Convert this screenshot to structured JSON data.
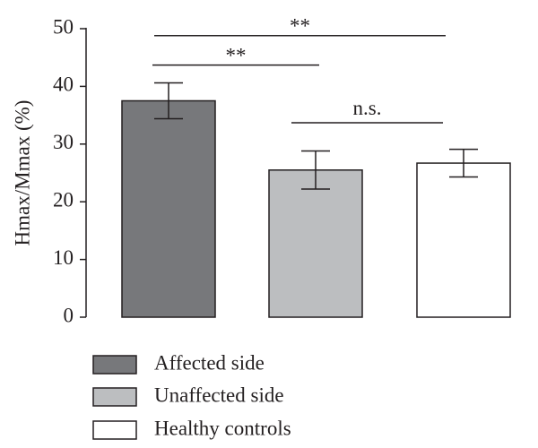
{
  "chart_data": {
    "type": "bar",
    "title": "",
    "xlabel": "",
    "ylabel": "Hmax/Mmax (%)",
    "ylim": [
      0,
      50
    ],
    "yticks": [
      0,
      10,
      20,
      30,
      40,
      50
    ],
    "categories": [
      "Affected side",
      "Unaffected side",
      "Healthy controls"
    ],
    "values": [
      37.5,
      25.5,
      26.7
    ],
    "errors": [
      3.1,
      3.3,
      2.4
    ],
    "colors": [
      "#77787b",
      "#bcbec0",
      "#ffffff"
    ],
    "grid": false,
    "legend_position": "bottom",
    "significance": [
      {
        "from": 0,
        "to": 2,
        "y": 48.8,
        "label": "**"
      },
      {
        "from": 0,
        "to": 1,
        "y": 43.7,
        "label": "**"
      },
      {
        "from": 1,
        "to": 2,
        "y": 33.7,
        "label": "n.s."
      }
    ]
  }
}
